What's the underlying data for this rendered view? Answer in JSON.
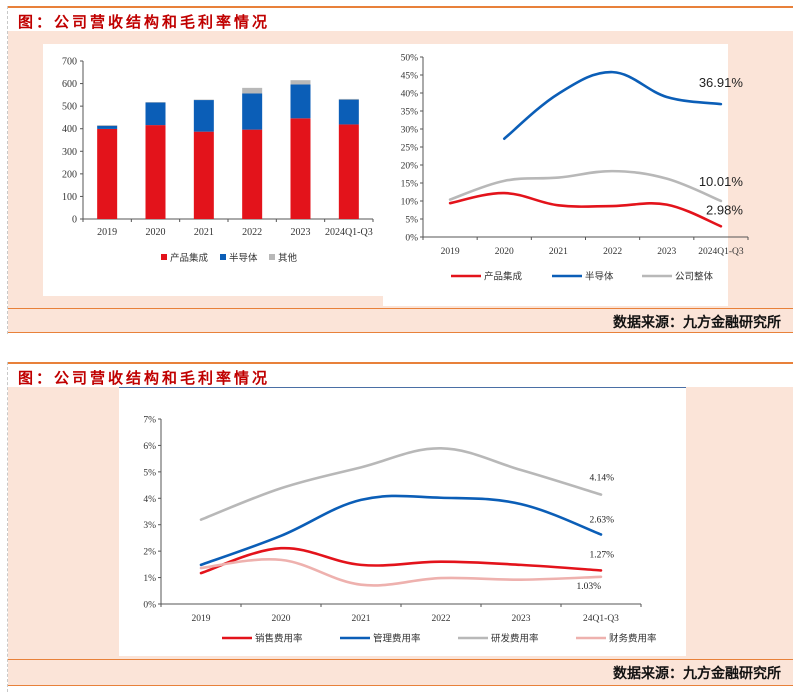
{
  "figure1": {
    "title": "图：公司营收结构和毛利率情况",
    "source": "数据来源：九方金融研究所"
  },
  "figure2": {
    "title": "图：公司营收结构和毛利率情况",
    "source": "数据来源：九方金融研究所"
  },
  "colors": {
    "red": "#e3131b",
    "blue": "#0b5eb7",
    "grey": "#b8b8b8",
    "pink": "#eeb1ae",
    "title_red": "#c00000",
    "border_orange": "#e8813a",
    "panel_bg": "#fbe4d8"
  },
  "chart_data": [
    {
      "type": "bar",
      "stacked": true,
      "title": "",
      "xlabel": "",
      "ylabel": "",
      "categories": [
        "2019",
        "2020",
        "2021",
        "2022",
        "2023",
        "2024Q1-Q3"
      ],
      "yticks": [
        "0",
        "100",
        "200",
        "300",
        "400",
        "500",
        "600",
        "700"
      ],
      "ylim": [
        0,
        700
      ],
      "series": [
        {
          "name": "产品集成",
          "color": "#e3131b",
          "values": [
            399,
            416,
            387,
            396,
            446,
            419
          ]
        },
        {
          "name": "半导体",
          "color": "#0b5eb7",
          "values": [
            14,
            100,
            140,
            160,
            150,
            110
          ]
        },
        {
          "name": "其他",
          "color": "#b8b8b8",
          "values": [
            3,
            2,
            2,
            25,
            19,
            3
          ]
        }
      ],
      "legend_position": "bottom",
      "grid": false
    },
    {
      "type": "line",
      "title": "",
      "xlabel": "",
      "ylabel": "",
      "categories": [
        "2019",
        "2020",
        "2021",
        "2022",
        "2023",
        "2024Q1-Q3"
      ],
      "yticks": [
        "0%",
        "5%",
        "10%",
        "15%",
        "20%",
        "25%",
        "30%",
        "35%",
        "40%",
        "45%",
        "50%"
      ],
      "ylim": [
        0,
        50
      ],
      "series": [
        {
          "name": "产品集成",
          "color": "#e3131b",
          "values": [
            9.4,
            12.2,
            8.8,
            8.6,
            9.0,
            2.98
          ],
          "end_label": "2.98%"
        },
        {
          "name": "半导体",
          "color": "#0b5eb7",
          "values": [
            null,
            27.3,
            39.8,
            45.8,
            38.9,
            36.91
          ],
          "end_label": "36.91%"
        },
        {
          "name": "公司整体",
          "color": "#b8b8b8",
          "values": [
            10.4,
            15.6,
            16.5,
            18.3,
            16.2,
            10.01
          ],
          "end_label": "10.01%"
        }
      ],
      "legend_position": "bottom",
      "grid": false
    },
    {
      "type": "line",
      "title": "",
      "xlabel": "",
      "ylabel": "",
      "categories": [
        "2019",
        "2020",
        "2021",
        "2022",
        "2023",
        "24Q1-Q3"
      ],
      "yticks": [
        "0%",
        "1%",
        "2%",
        "3%",
        "4%",
        "5%",
        "6%",
        "7%"
      ],
      "ylim": [
        0,
        7
      ],
      "series": [
        {
          "name": "销售费用率",
          "color": "#e3131b",
          "values": [
            1.17,
            2.11,
            1.48,
            1.6,
            1.48,
            1.27
          ],
          "end_label": "1.27%"
        },
        {
          "name": "管理费用率",
          "color": "#0b5eb7",
          "values": [
            1.48,
            2.58,
            3.94,
            4.02,
            3.78,
            2.63
          ],
          "end_label": "2.63%"
        },
        {
          "name": "研发费用率",
          "color": "#b8b8b8",
          "values": [
            3.19,
            4.38,
            5.17,
            5.89,
            5.07,
            4.14
          ],
          "end_label": "4.14%"
        },
        {
          "name": "财务费用率",
          "color": "#eeb1ae",
          "values": [
            1.36,
            1.67,
            0.73,
            0.98,
            0.92,
            1.03
          ],
          "end_label": "1.03%"
        }
      ],
      "legend_position": "bottom",
      "grid": false
    }
  ]
}
